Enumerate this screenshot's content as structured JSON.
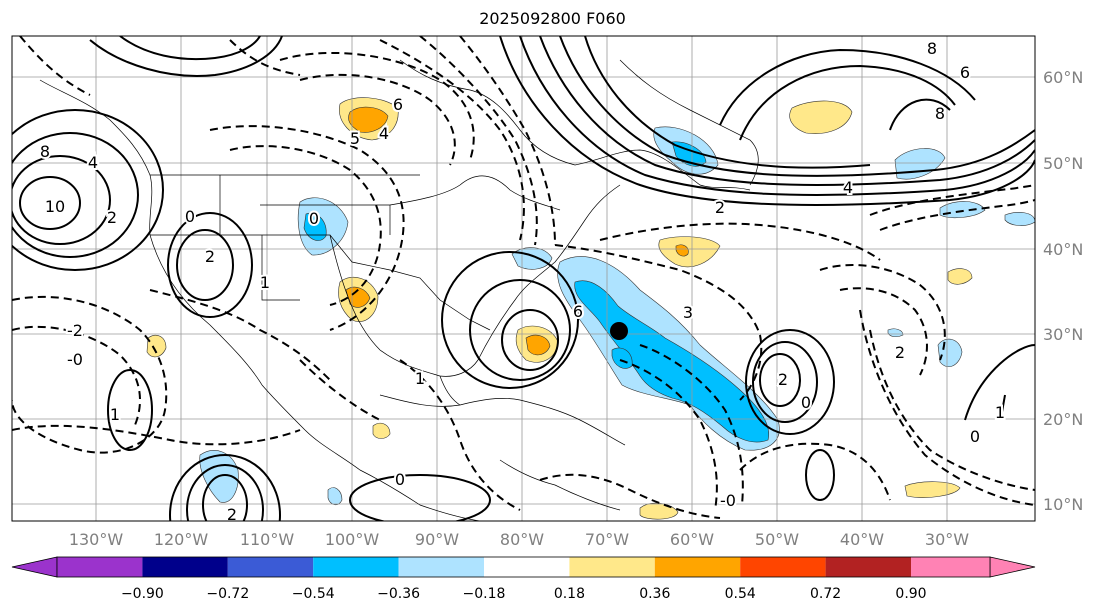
{
  "title": "2025092800 F060",
  "lon_labels": [
    "130°W",
    "120°W",
    "110°W",
    "100°W",
    "90°W",
    "80°W",
    "70°W",
    "60°W",
    "50°W",
    "40°W",
    "30°W"
  ],
  "lat_labels": [
    "60°N",
    "50°N",
    "40°N",
    "30°N",
    "20°N",
    "10°N"
  ],
  "colorbar": {
    "tick_labels": [
      "−0.90",
      "−0.72",
      "−0.54",
      "−0.36",
      "−0.18",
      "0.18",
      "0.36",
      "0.54",
      "0.72",
      "0.90"
    ],
    "colors": [
      "#9b33cc",
      "#00008b",
      "#3b5bd6",
      "#00bfff",
      "#aee3ff",
      "#ffffff",
      "#ffe88a",
      "#ffa500",
      "#ff4500",
      "#b22222",
      "#ff82b4"
    ]
  },
  "contour_labels": [
    {
      "text": "10"
    },
    {
      "text": "8"
    },
    {
      "text": "4"
    },
    {
      "text": "2"
    },
    {
      "text": "0"
    },
    {
      "text": "-2"
    },
    {
      "text": "-0"
    },
    {
      "text": "1"
    },
    {
      "text": "6"
    },
    {
      "text": "5"
    },
    {
      "text": "4"
    },
    {
      "text": "0"
    },
    {
      "text": "2"
    },
    {
      "text": "1"
    },
    {
      "text": "6"
    },
    {
      "text": "3"
    },
    {
      "text": "-0"
    },
    {
      "text": "4"
    },
    {
      "text": "2"
    },
    {
      "text": "8"
    },
    {
      "text": "6"
    },
    {
      "text": "8"
    },
    {
      "text": "2"
    },
    {
      "text": "0"
    },
    {
      "text": "1"
    },
    {
      "text": "2"
    },
    {
      "text": "0"
    },
    {
      "text": "0"
    },
    {
      "text": "2"
    },
    {
      "text": "1"
    }
  ],
  "marker": "storm-center-dot"
}
